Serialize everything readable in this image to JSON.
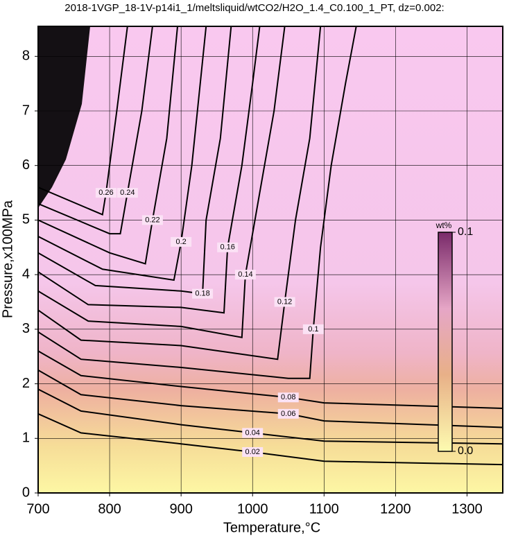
{
  "chart_data": {
    "type": "contour",
    "title": "2018-1VGP_18-1V-p14i1_1/meltsliquid/wtCO2/H2O_1.4_C0.100_1_PT, dz=0.002:",
    "x_label": "Temperature,°C",
    "y_label": "Pressure,x100MPa",
    "xlim": [
      700,
      1350
    ],
    "ylim": [
      0,
      8.55
    ],
    "xticks": [
      700,
      800,
      900,
      1000,
      1100,
      1200,
      1300
    ],
    "yticks": [
      0,
      1,
      2,
      3,
      4,
      5,
      6,
      7,
      8
    ],
    "grid": true,
    "contours": [
      {
        "level": 0.02,
        "x": [
          700,
          760,
          900,
          1000,
          1100,
          1350
        ],
        "y": [
          1.45,
          1.1,
          0.9,
          0.75,
          0.58,
          0.52
        ]
      },
      {
        "level": 0.04,
        "x": [
          700,
          760,
          900,
          1000,
          1100,
          1350
        ],
        "y": [
          1.9,
          1.5,
          1.25,
          1.1,
          0.95,
          0.9
        ]
      },
      {
        "level": 0.06,
        "x": [
          700,
          760,
          900,
          1050,
          1100,
          1350
        ],
        "y": [
          2.25,
          1.8,
          1.6,
          1.45,
          1.32,
          1.2
        ]
      },
      {
        "level": 0.08,
        "x": [
          700,
          760,
          900,
          1050,
          1100,
          1350
        ],
        "y": [
          2.6,
          2.15,
          1.95,
          1.75,
          1.65,
          1.55
        ]
      },
      {
        "level": 0.1,
        "x": [
          700,
          760,
          900,
          1050,
          1080,
          1085,
          1095,
          1110,
          1130,
          1145
        ],
        "y": [
          2.95,
          2.45,
          2.3,
          2.1,
          2.1,
          3.0,
          4.5,
          6,
          7.5,
          8.55
        ]
      },
      {
        "level": 0.12,
        "x": [
          700,
          760,
          900,
          1035,
          1045,
          1060,
          1080,
          1095
        ],
        "y": [
          3.35,
          2.8,
          2.7,
          2.45,
          3.5,
          5,
          6.5,
          8.55
        ]
      },
      {
        "level": 0.14,
        "x": [
          700,
          770,
          900,
          985,
          990,
          1010,
          1030,
          1045
        ],
        "y": [
          3.7,
          3.15,
          3.05,
          2.85,
          4,
          5.5,
          7,
          8.55
        ]
      },
      {
        "level": 0.16,
        "x": [
          700,
          770,
          900,
          960,
          965,
          985,
          1000,
          1010
        ],
        "y": [
          4.05,
          3.45,
          3.4,
          3.3,
          4.5,
          6,
          7.5,
          8.55
        ]
      },
      {
        "level": 0.18,
        "x": [
          700,
          780,
          900,
          930,
          935,
          955,
          970
        ],
        "y": [
          4.4,
          3.8,
          3.7,
          3.65,
          5,
          6.5,
          8.55
        ]
      },
      {
        "level": 0.2,
        "x": [
          700,
          790,
          890,
          900,
          915,
          935
        ],
        "y": [
          4.7,
          4.1,
          3.9,
          4.6,
          6,
          8.55
        ]
      },
      {
        "level": 0.22,
        "x": [
          700,
          800,
          850,
          860,
          880,
          895
        ],
        "y": [
          5.0,
          4.4,
          4.2,
          5,
          6.5,
          8.55
        ]
      },
      {
        "level": 0.24,
        "x": [
          700,
          800,
          815,
          825,
          845,
          860
        ],
        "y": [
          5.3,
          4.75,
          4.75,
          5.5,
          7,
          8.55
        ]
      },
      {
        "level": 0.26,
        "x": [
          700,
          790,
          795,
          810,
          825
        ],
        "y": [
          5.6,
          5.1,
          5.5,
          7,
          8.55
        ]
      }
    ],
    "colorbar": {
      "label": "wt%",
      "ticks": [
        {
          "value": 0,
          "label": "0.0"
        },
        0.1
      ]
    }
  }
}
